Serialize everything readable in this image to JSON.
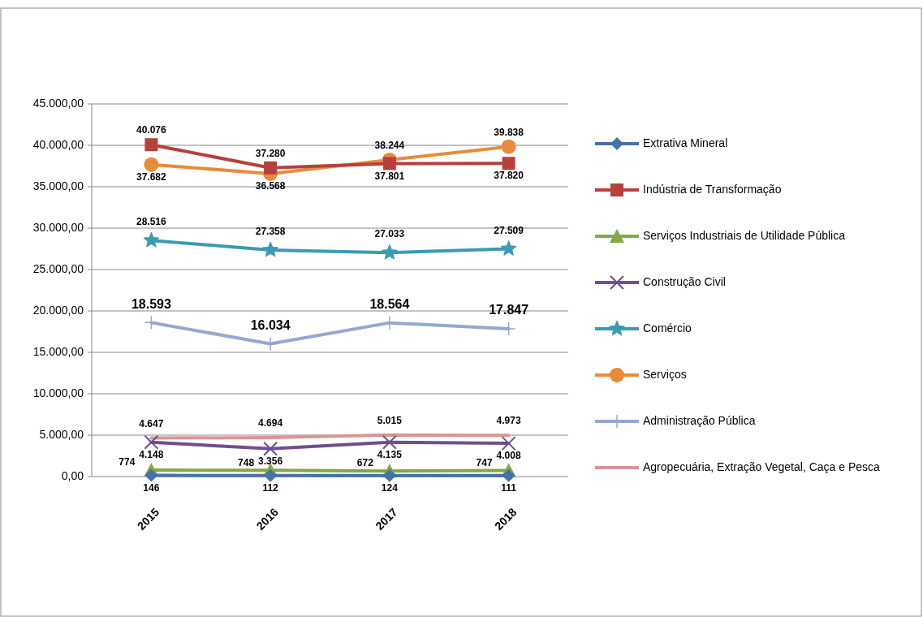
{
  "chart_data": {
    "type": "line",
    "categories": [
      "2015",
      "2016",
      "2017",
      "2018"
    ],
    "ylim": [
      0,
      45000
    ],
    "yticks": [
      {
        "value": 0,
        "label": "0,00"
      },
      {
        "value": 5000,
        "label": "5.000,00"
      },
      {
        "value": 10000,
        "label": "10.000,00"
      },
      {
        "value": 15000,
        "label": "15.000,00"
      },
      {
        "value": 20000,
        "label": "20.000,00"
      },
      {
        "value": 25000,
        "label": "25.000,00"
      },
      {
        "value": 30000,
        "label": "30.000,00"
      },
      {
        "value": 35000,
        "label": "35.000,00"
      },
      {
        "value": 40000,
        "label": "40.000,00"
      },
      {
        "value": 45000,
        "label": "45.000,00"
      }
    ],
    "grid": "y",
    "legend": "right",
    "series": [
      {
        "name": "Extrativa Mineral",
        "color": "#4472a8",
        "marker": "diamond",
        "values": [
          146,
          112,
          124,
          111
        ],
        "value_labels": [
          "146",
          "112",
          "124",
          "111"
        ]
      },
      {
        "name": "Indústria de Transformação",
        "color": "#b5413c",
        "marker": "square",
        "values": [
          40076,
          37280,
          37801,
          37820
        ],
        "value_labels": [
          "40.076",
          "37.280",
          "37.801",
          "37.820"
        ]
      },
      {
        "name": "Serviços Industriais de Utilidade Pública",
        "color": "#83a844",
        "marker": "triangle",
        "values": [
          774,
          748,
          672,
          747
        ],
        "value_labels": [
          "774",
          "748",
          "672",
          "747"
        ]
      },
      {
        "name": "Construção Civil",
        "color": "#6f4f8f",
        "marker": "cross",
        "values": [
          4148,
          3356,
          4135,
          4008
        ],
        "value_labels": [
          "4.148",
          "3.356",
          "4.135",
          "4.008"
        ]
      },
      {
        "name": "Comércio",
        "color": "#3a9bb3",
        "marker": "star",
        "values": [
          28516,
          27358,
          27033,
          27509
        ],
        "value_labels": [
          "28.516",
          "27.358",
          "27.033",
          "27.509"
        ]
      },
      {
        "name": "Serviços",
        "color": "#e88b3a",
        "marker": "circle",
        "values": [
          37682,
          36568,
          38244,
          39838
        ],
        "value_labels": [
          "37.682",
          "36.568",
          "38.244",
          "39.838"
        ]
      },
      {
        "name": "Administração Pública",
        "color": "#93a9d2",
        "marker": "plus",
        "values": [
          18593,
          16034,
          18564,
          17847
        ],
        "value_labels": [
          "18.593",
          "16.034",
          "18.564",
          "17.847"
        ]
      },
      {
        "name": "Agropecuária, Extração Vegetal, Caça e Pesca",
        "color": "#d99594",
        "marker": "none",
        "values": [
          4647,
          4694,
          5015,
          4973
        ],
        "value_labels": [
          "4.647",
          "4.694",
          "5.015",
          "4.973"
        ]
      }
    ]
  }
}
